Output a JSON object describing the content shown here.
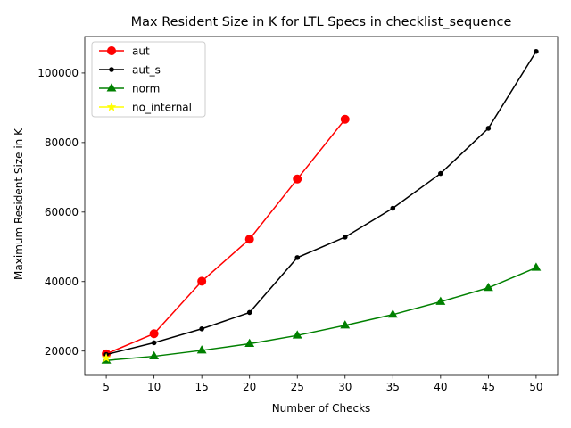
{
  "chart_data": {
    "type": "line",
    "title": "Max Resident Size in K for LTL Specs in checklist_sequence",
    "xlabel": "Number of Checks",
    "ylabel": "Maximum Resident Size in K",
    "xlim": [
      2.75,
      52.25
    ],
    "ylim": [
      13000,
      110500
    ],
    "xticks": [
      5,
      10,
      15,
      20,
      25,
      30,
      35,
      40,
      45,
      50
    ],
    "yticks": [
      20000,
      40000,
      60000,
      80000,
      100000
    ],
    "grid": false,
    "legend_position": "top-left",
    "series": [
      {
        "name": "aut",
        "color": "#ff0000",
        "marker": "circle-large",
        "x": [
          5,
          10,
          15,
          20,
          25,
          30
        ],
        "y": [
          19200,
          25000,
          40100,
          52200,
          69500,
          86700
        ]
      },
      {
        "name": "aut_s",
        "color": "#000000",
        "marker": "circle-small",
        "x": [
          5,
          10,
          15,
          20,
          25,
          30,
          35,
          40,
          45,
          50
        ],
        "y": [
          19000,
          22400,
          26400,
          31100,
          46900,
          52800,
          61100,
          71100,
          84100,
          106200
        ]
      },
      {
        "name": "norm",
        "color": "#008000",
        "marker": "triangle",
        "x": [
          5,
          10,
          15,
          20,
          25,
          30,
          35,
          40,
          45,
          50
        ],
        "y": [
          17300,
          18500,
          20200,
          22100,
          24500,
          27400,
          30500,
          34200,
          38200,
          44000
        ]
      },
      {
        "name": "no_internal",
        "color": "#ffff00",
        "marker": "star",
        "x": [
          5
        ],
        "y": [
          18000
        ]
      }
    ]
  }
}
